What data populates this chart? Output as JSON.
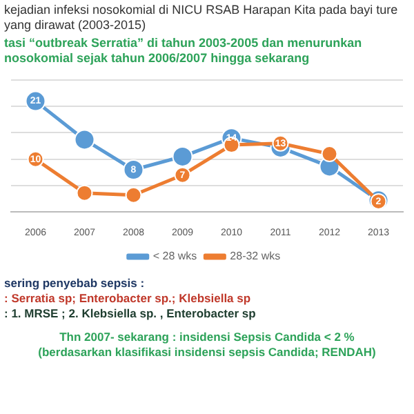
{
  "chart_data": {
    "type": "line",
    "title": "kejadian infeksi nosokomial di NICU RSAB Harapan Kita pada bayi ture yang dirawat (2003-2015)",
    "subtitle": "tasi “outbreak Serratia” di tahun 2003-2005 dan menurunkan nosokomial sejak tahun 2006/2007 hingga sekarang",
    "categories": [
      "2006",
      "2007",
      "2008",
      "2009",
      "2010",
      "2011",
      "2012",
      "2013"
    ],
    "series": [
      {
        "name": "< 28 wks",
        "color": "#5b9bd5",
        "values": [
          21,
          13.7,
          8,
          10.5,
          14,
          12.2,
          8.6,
          2.2
        ],
        "value_labels": [
          "21",
          null,
          "8",
          null,
          "14",
          null,
          null,
          null
        ]
      },
      {
        "name": "28-32 wks",
        "color": "#ed7d31",
        "values": [
          10,
          3.6,
          3.2,
          7,
          12.7,
          13,
          11,
          2
        ],
        "value_labels": [
          "10",
          null,
          null,
          "7",
          null,
          "13",
          null,
          "2"
        ]
      }
    ],
    "ylim": [
      0,
      25
    ],
    "yticks": [
      {
        "value": 0,
        "label": null
      },
      {
        "value": 5,
        "label": null
      },
      {
        "value": 10,
        "label": null
      },
      {
        "value": 15,
        "label": null
      },
      {
        "value": 20,
        "label": null
      },
      {
        "value": 25,
        "label": null
      }
    ],
    "tick_labels": "x",
    "grid": "y",
    "legend": "bottom",
    "marker": "circle",
    "annotations": [
      "sering penyebab sepsis :",
      ": Serratia sp; Enterobacter sp.; Klebsiella sp",
      ": 1. MRSE ; 2. Klebsiella sp. , Enterobacter sp",
      "Thn 2007- sekarang : insidensi Sepsis Candida < 2 %",
      "(berdasarkan klasifikasi insidensi sepsis Candida;  RENDAH)"
    ]
  }
}
